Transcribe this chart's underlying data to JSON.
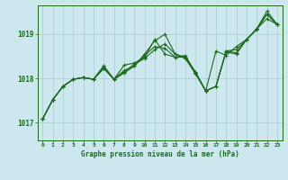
{
  "bg_color": "#cce8ee",
  "grid_color": "#aacccc",
  "line_color": "#1a6b1a",
  "title": "Graphe pression niveau de la mer (hPa)",
  "xlabel_ticks": [
    0,
    1,
    2,
    3,
    4,
    5,
    6,
    7,
    8,
    9,
    10,
    11,
    12,
    13,
    14,
    15,
    16,
    17,
    18,
    19,
    20,
    21,
    22,
    23
  ],
  "yticks": [
    1017,
    1018,
    1019
  ],
  "ylim": [
    1016.6,
    1019.65
  ],
  "xlim": [
    -0.5,
    23.5
  ],
  "series": [
    [
      1017.08,
      1017.52,
      1017.82,
      1017.98,
      1018.02,
      1017.98,
      1018.22,
      1017.98,
      1018.3,
      1018.35,
      1018.48,
      1018.88,
      1018.55,
      1018.48,
      1018.52,
      1018.12,
      1017.72,
      1018.62,
      1018.52,
      1018.72,
      1018.88,
      1019.12,
      1019.52,
      1019.22
    ],
    [
      1017.08,
      1017.52,
      1017.82,
      1017.98,
      1018.02,
      1017.98,
      1018.25,
      1017.98,
      1018.18,
      1018.28,
      1018.52,
      1018.72,
      1018.68,
      1018.48,
      1018.48,
      1018.12,
      1017.72,
      1017.82,
      1018.62,
      1018.58,
      1018.88,
      1019.12,
      1019.45,
      1019.22
    ],
    [
      1017.08,
      1017.52,
      1017.82,
      1017.98,
      1018.02,
      1017.98,
      1018.28,
      1017.98,
      1018.15,
      1018.32,
      1018.45,
      1018.65,
      1018.78,
      1018.55,
      1018.48,
      1018.15,
      1017.72,
      1017.82,
      1018.62,
      1018.65,
      1018.88,
      1019.12,
      1019.35,
      1019.22
    ],
    [
      1017.08,
      1017.52,
      1017.82,
      1017.98,
      1018.02,
      1017.98,
      1018.28,
      1017.98,
      1018.12,
      1018.28,
      1018.55,
      1018.85,
      1019.0,
      1018.55,
      1018.45,
      1018.1,
      1017.72,
      1017.82,
      1018.6,
      1018.55,
      1018.88,
      1019.1,
      1019.45,
      1019.22
    ]
  ]
}
